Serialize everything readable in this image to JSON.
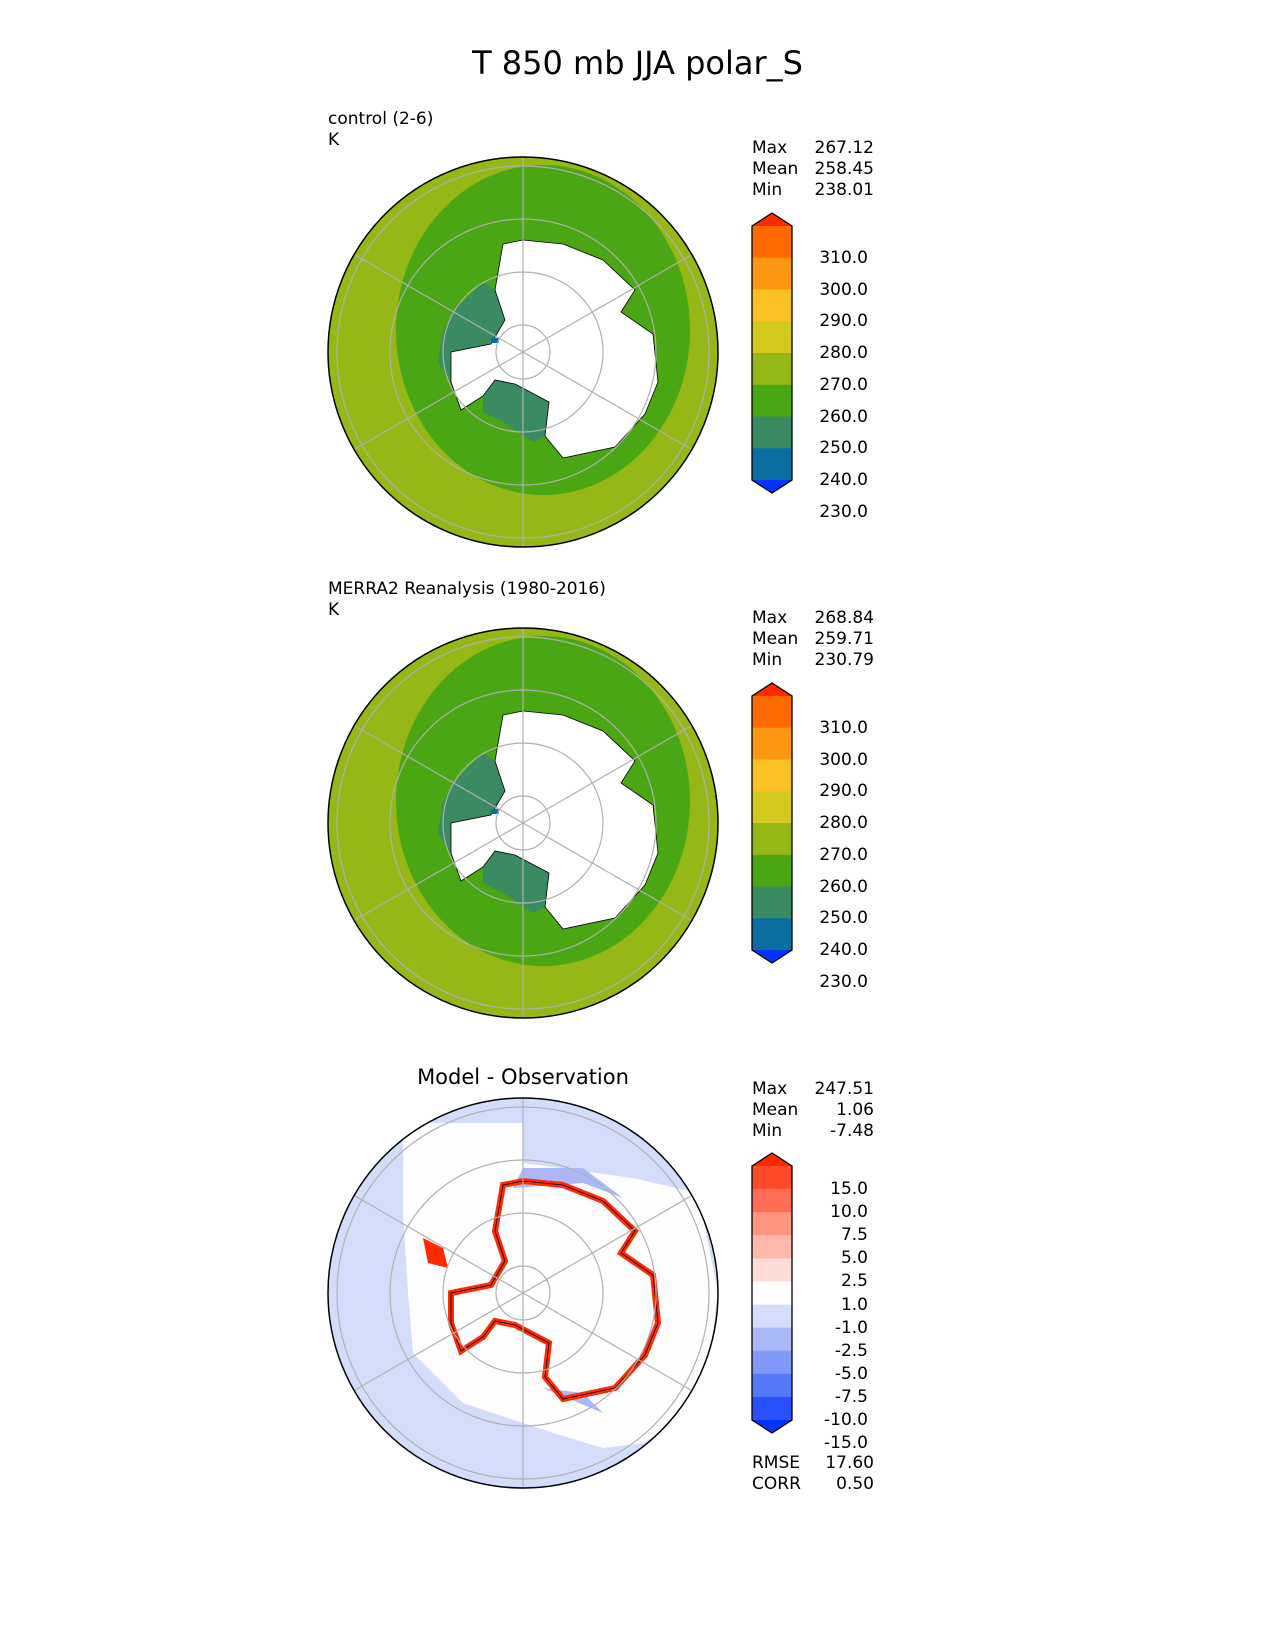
{
  "title": "T 850 mb JJA polar_S",
  "chart_data": [
    {
      "type": "heatmap",
      "projection": "south-polar-stereographic",
      "title": "control (2-6)",
      "units": "K",
      "stats": {
        "max_label": "Max",
        "max": "267.12",
        "mean_label": "Mean",
        "mean": "258.45",
        "min_label": "Min",
        "min": "238.01"
      },
      "colorbar": {
        "ticks": [
          "310.0",
          "300.0",
          "290.0",
          "280.0",
          "270.0",
          "260.0",
          "250.0",
          "240.0",
          "230.0"
        ],
        "colors": [
          "#ff2a00",
          "#fe6a00",
          "#fd9610",
          "#fbc021",
          "#d4c91f",
          "#96b816",
          "#4aa612",
          "#3a8a62",
          "#0a6ea0",
          "#0033ff"
        ]
      }
    },
    {
      "type": "heatmap",
      "projection": "south-polar-stereographic",
      "title": "MERRA2 Reanalysis (1980-2016)",
      "units": "K",
      "stats": {
        "max_label": "Max",
        "max": "268.84",
        "mean_label": "Mean",
        "mean": "259.71",
        "min_label": "Min",
        "min": "230.79"
      },
      "colorbar": {
        "ticks": [
          "310.0",
          "300.0",
          "290.0",
          "280.0",
          "270.0",
          "260.0",
          "250.0",
          "240.0",
          "230.0"
        ],
        "colors": [
          "#ff2a00",
          "#fe6a00",
          "#fd9610",
          "#fbc021",
          "#d4c91f",
          "#96b816",
          "#4aa612",
          "#3a8a62",
          "#0a6ea0",
          "#0033ff"
        ]
      }
    },
    {
      "type": "heatmap",
      "projection": "south-polar-stereographic",
      "title": "Model - Observation",
      "stats": {
        "max_label": "Max",
        "max": "247.51",
        "mean_label": "Mean",
        "mean": "1.06",
        "min_label": "Min",
        "min": "-7.48"
      },
      "colorbar": {
        "ticks": [
          "15.0",
          "10.0",
          "7.5",
          "5.0",
          "2.5",
          "1.0",
          "-1.0",
          "-2.5",
          "-5.0",
          "-7.5",
          "-10.0",
          "-15.0"
        ],
        "colors": [
          "#ff2a00",
          "#ff4a2c",
          "#ff6e54",
          "#ff947f",
          "#ffb8aa",
          "#ffdcd6",
          "#fefefe",
          "#d4dcfc",
          "#aab8fa",
          "#8098f8",
          "#5578f8",
          "#2a50fc",
          "#0033ff"
        ]
      },
      "metrics": {
        "rmse_label": "RMSE",
        "rmse": "17.60",
        "corr_label": "CORR",
        "corr": "0.50"
      }
    }
  ]
}
